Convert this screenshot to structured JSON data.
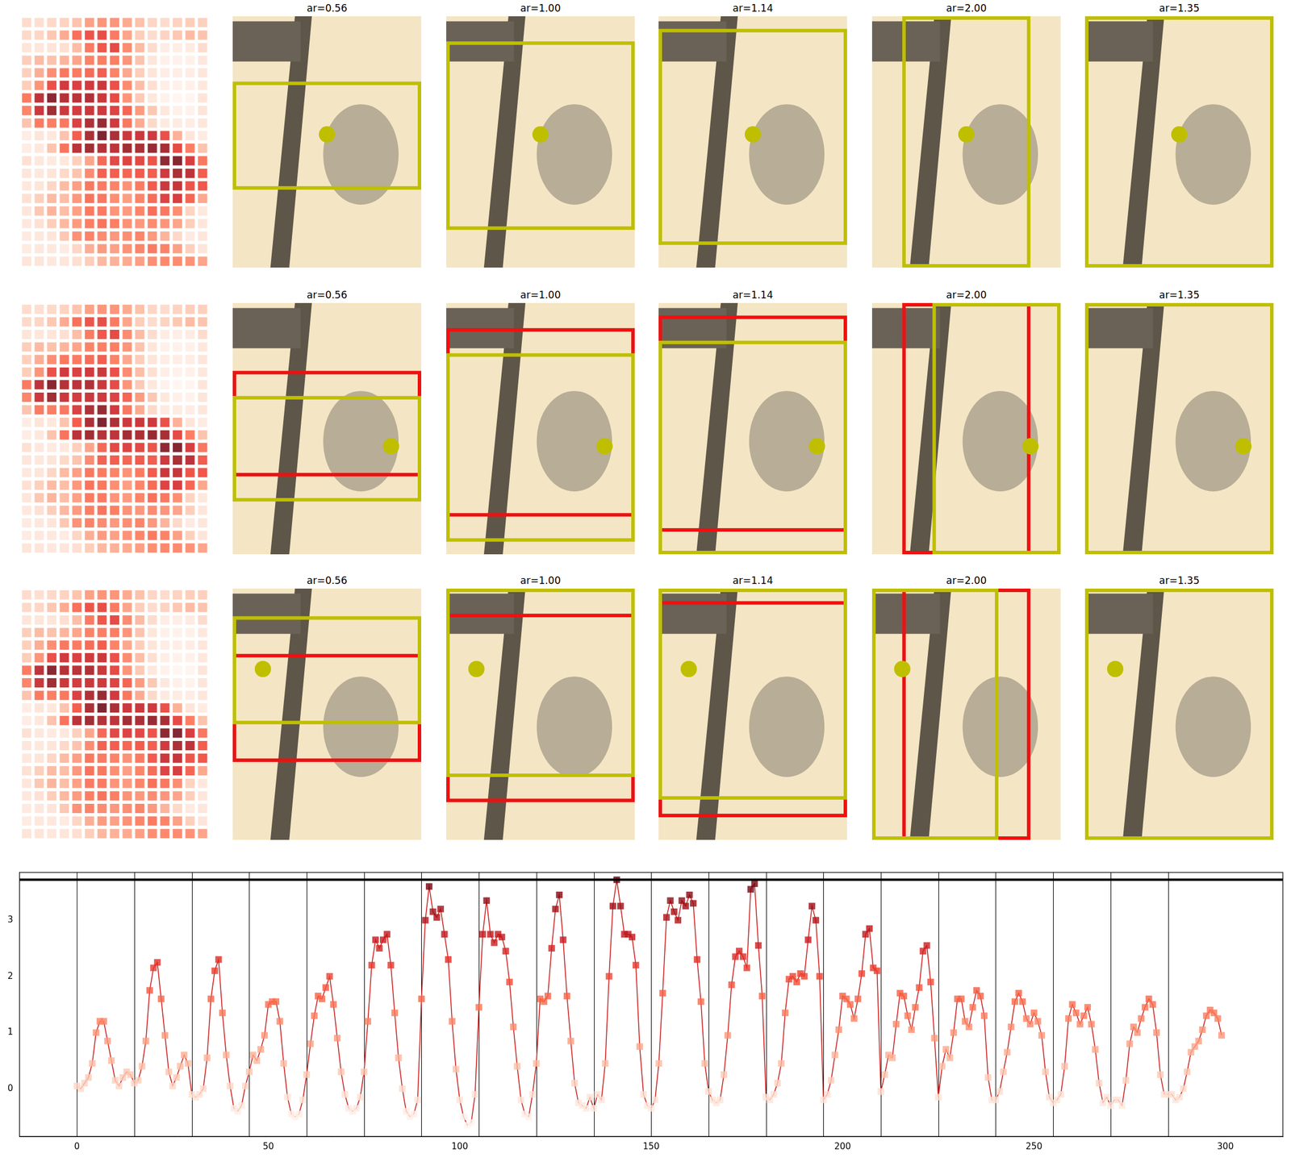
{
  "chart_data": {
    "type": "line",
    "x": [
      0,
      1,
      2,
      3,
      4,
      5,
      6,
      7,
      8,
      9,
      10,
      11,
      12,
      13,
      14,
      15,
      16,
      17,
      18,
      19,
      20,
      21,
      22,
      23,
      24,
      25,
      26,
      27,
      28,
      29,
      30,
      31,
      32,
      33,
      34,
      35,
      36,
      37,
      38,
      39,
      40,
      41,
      42,
      43,
      44,
      45,
      46,
      47,
      48,
      49,
      50,
      51,
      52,
      53,
      54,
      55,
      56,
      57,
      58,
      59,
      60,
      61,
      62,
      63,
      64,
      65,
      66,
      67,
      68,
      69,
      70,
      71,
      72,
      73,
      74,
      75,
      76,
      77,
      78,
      79,
      80,
      81,
      82,
      83,
      84,
      85,
      86,
      87,
      88,
      89,
      90,
      91,
      92,
      93,
      94,
      95,
      96,
      97,
      98,
      99,
      100,
      101,
      102,
      103,
      104,
      105,
      106,
      107,
      108,
      109,
      110,
      111,
      112,
      113,
      114,
      115,
      116,
      117,
      118,
      119,
      120,
      121,
      122,
      123,
      124,
      125,
      126,
      127,
      128,
      129,
      130,
      131,
      132,
      133,
      134,
      135,
      136,
      137,
      138,
      139,
      140,
      141,
      142,
      143,
      144,
      145,
      146,
      147,
      148,
      149,
      150,
      151,
      152,
      153,
      154,
      155,
      156,
      157,
      158,
      159,
      160,
      161,
      162,
      163,
      164,
      165,
      166,
      167,
      168,
      169,
      170,
      171,
      172,
      173,
      174,
      175,
      176,
      177,
      178,
      179,
      180,
      181,
      182,
      183,
      184,
      185,
      186,
      187,
      188,
      189,
      190,
      191,
      192,
      193,
      194,
      195,
      196,
      197,
      198,
      199,
      200,
      201,
      202,
      203,
      204,
      205,
      206,
      207,
      208,
      209,
      210,
      211,
      212,
      213,
      214,
      215,
      216,
      217,
      218,
      219,
      220,
      221,
      222,
      223,
      224,
      225,
      226,
      227,
      228,
      229,
      230,
      231,
      232,
      233,
      234,
      235,
      236,
      237,
      238,
      239,
      240,
      241,
      242,
      243,
      244,
      245,
      246,
      247,
      248,
      249,
      250,
      251,
      252,
      253,
      254,
      255,
      256,
      257,
      258,
      259,
      260,
      261,
      262,
      263,
      264,
      265,
      266,
      267,
      268,
      269,
      270,
      271,
      272,
      273,
      274,
      275,
      276,
      277,
      278,
      279,
      280,
      281,
      282,
      283,
      284,
      285,
      286,
      287,
      288,
      289,
      290,
      291,
      292,
      293,
      294,
      295,
      296,
      297,
      298,
      299
    ],
    "values": [
      0.05,
      0,
      0.1,
      0.2,
      0.45,
      1.0,
      1.2,
      1.2,
      0.85,
      0.5,
      0.15,
      0.05,
      0.2,
      0.3,
      0.25,
      0.1,
      0.15,
      0.4,
      0.85,
      1.75,
      2.15,
      2.25,
      1.6,
      0.95,
      0.3,
      0.05,
      0.2,
      0.4,
      0.6,
      0.45,
      -0.1,
      -0.15,
      -0.1,
      0.0,
      0.55,
      1.6,
      2.1,
      2.3,
      1.35,
      0.6,
      0.05,
      -0.35,
      -0.4,
      -0.3,
      0.05,
      0.3,
      0.6,
      0.5,
      0.7,
      0.95,
      1.5,
      1.55,
      1.55,
      1.2,
      0.45,
      -0.15,
      -0.45,
      -0.5,
      -0.45,
      -0.2,
      0.25,
      0.8,
      1.3,
      1.65,
      1.6,
      1.8,
      2.0,
      1.5,
      0.9,
      0.3,
      -0.1,
      -0.35,
      -0.4,
      -0.35,
      -0.15,
      0.3,
      1.2,
      2.2,
      2.65,
      2.5,
      2.65,
      2.75,
      2.2,
      1.35,
      0.55,
      0.0,
      -0.4,
      -0.5,
      -0.45,
      -0.2,
      1.6,
      3.0,
      3.6,
      3.15,
      3.05,
      3.2,
      2.75,
      2.3,
      1.2,
      0.35,
      -0.2,
      -0.5,
      -0.65,
      -0.6,
      -0.1,
      1.45,
      2.75,
      3.35,
      2.75,
      2.6,
      2.75,
      2.7,
      2.45,
      1.9,
      1.1,
      0.4,
      -0.2,
      -0.45,
      -0.5,
      -0.1,
      0.45,
      1.6,
      1.55,
      1.65,
      2.5,
      3.2,
      3.45,
      2.65,
      1.65,
      0.85,
      0.1,
      -0.25,
      -0.3,
      -0.35,
      -0.15,
      -0.35,
      -0.1,
      -0.2,
      0.45,
      2.0,
      3.25,
      3.72,
      3.25,
      2.75,
      2.75,
      2.7,
      2.2,
      0.75,
      -0.1,
      -0.3,
      -0.35,
      -0.2,
      0.45,
      1.7,
      3.05,
      3.35,
      3.15,
      3.0,
      3.35,
      3.25,
      3.45,
      3.3,
      2.3,
      1.55,
      0.45,
      -0.05,
      -0.2,
      -0.25,
      -0.2,
      0.25,
      0.95,
      1.85,
      2.35,
      2.45,
      2.35,
      2.15,
      3.55,
      3.65,
      2.55,
      1.65,
      -0.15,
      -0.2,
      -0.1,
      0.1,
      0.45,
      1.35,
      1.95,
      2.0,
      1.9,
      2.05,
      2.0,
      2.65,
      3.25,
      3.0,
      2.0,
      -0.2,
      -0.1,
      0.15,
      0.6,
      1.05,
      1.65,
      1.6,
      1.5,
      1.25,
      1.6,
      2.05,
      2.75,
      2.85,
      2.15,
      2.1,
      -0.05,
      0.25,
      0.6,
      0.55,
      1.15,
      1.7,
      1.65,
      1.3,
      1.05,
      1.45,
      1.8,
      2.45,
      2.55,
      1.9,
      0.9,
      -0.15,
      0.4,
      0.7,
      0.55,
      1.0,
      1.6,
      1.6,
      1.2,
      1.1,
      1.45,
      1.75,
      1.65,
      1.3,
      0.2,
      -0.2,
      -0.2,
      -0.05,
      0.3,
      0.65,
      1.1,
      1.55,
      1.7,
      1.55,
      1.25,
      1.15,
      1.35,
      1.2,
      0.95,
      0.3,
      -0.15,
      -0.25,
      -0.2,
      -0.1,
      0.4,
      1.25,
      1.5,
      1.35,
      1.15,
      1.3,
      1.45,
      1.15,
      0.7,
      0.1,
      -0.25,
      -0.15,
      -0.3,
      -0.2,
      -0.2,
      -0.3,
      0.15,
      0.8,
      1.1,
      1.0,
      1.25,
      1.45,
      1.6,
      1.5,
      1.0,
      0.25,
      -0.1,
      -0.1,
      -0.1,
      -0.2,
      -0.15,
      0.0,
      0.3,
      0.65,
      0.75,
      0.85,
      1.05,
      1.3,
      1.4,
      1.35,
      1.25,
      0.95
    ],
    "color": "#cc2222",
    "marker": "square",
    "xlim": [
      -15,
      315
    ],
    "ylim": [
      -0.85,
      3.85
    ],
    "xticks": [
      0,
      50,
      100,
      150,
      200,
      250,
      300
    ],
    "yticks": [
      0,
      1,
      2,
      3
    ],
    "vlines": [
      0,
      15,
      30,
      45,
      60,
      75,
      90,
      105,
      120,
      135,
      150,
      165,
      180,
      195,
      210,
      225,
      240,
      255,
      270,
      285
    ],
    "hline": 3.72,
    "grid": false
  },
  "panels": {
    "titles": [
      [
        "ar=0.56",
        "ar=1.00",
        "ar=1.14",
        "ar=2.00",
        "ar=1.35"
      ],
      [
        "ar=0.56",
        "ar=1.00",
        "ar=1.14",
        "ar=2.00",
        "ar=1.35"
      ],
      [
        "ar=0.56",
        "ar=1.00",
        "ar=1.14",
        "ar=2.00",
        "ar=1.35"
      ]
    ]
  }
}
